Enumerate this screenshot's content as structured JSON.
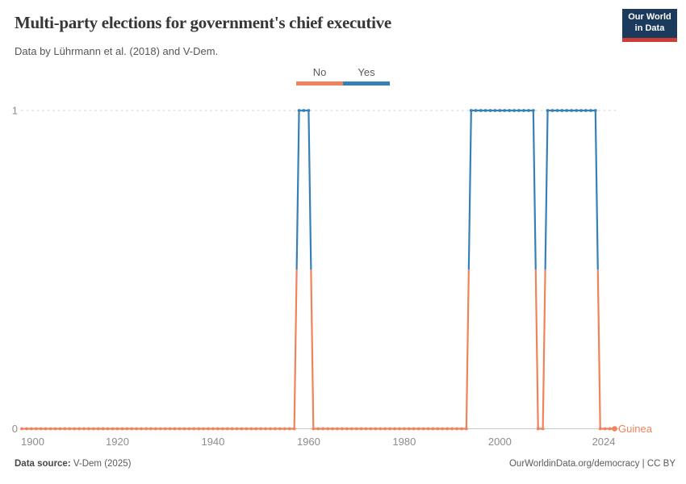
{
  "header": {
    "title": "Multi-party elections for government's chief executive",
    "subtitle": "Data by Lührmann et al. (2018) and V-Dem.",
    "logo": {
      "line1": "Our World",
      "line2": "in Data"
    }
  },
  "legend": {
    "items": [
      {
        "label": "No",
        "value": 0,
        "color": "#F0825C"
      },
      {
        "label": "Yes",
        "value": 1,
        "color": "#3581B7"
      }
    ]
  },
  "chart_data": {
    "type": "line",
    "subtype": "binary-step-with-yearly-markers",
    "title": "Multi-party elections for government's chief executive",
    "entity": "Guinea",
    "x_range": [
      1900,
      2024
    ],
    "y_range": [
      0,
      1
    ],
    "x_ticks": [
      "1900",
      "1920",
      "1940",
      "1960",
      "1980",
      "2000",
      "2024"
    ],
    "x_tick_years": [
      1900,
      1920,
      1940,
      1960,
      1980,
      2000,
      2024
    ],
    "y_ticks": [
      "0",
      "1"
    ],
    "y_tick_values": [
      0,
      1
    ],
    "grid": "dashed line at y=1, solid baseline at y=0",
    "legend_position": "top-center",
    "colors": {
      "value0": "#F0825C",
      "value1": "#3581B7"
    },
    "value_labels": {
      "0": "No",
      "1": "Yes"
    },
    "series": [
      {
        "name": "Guinea",
        "segments": [
          {
            "start": 1900,
            "end": 1957,
            "value": 0
          },
          {
            "start": 1958,
            "end": 1960,
            "value": 1
          },
          {
            "start": 1961,
            "end": 1993,
            "value": 0
          },
          {
            "start": 1994,
            "end": 2007,
            "value": 1
          },
          {
            "start": 2008,
            "end": 2009,
            "value": 0
          },
          {
            "start": 2010,
            "end": 2020,
            "value": 1
          },
          {
            "start": 2021,
            "end": 2024,
            "value": 0
          }
        ]
      }
    ],
    "end_label": "Guinea"
  },
  "footer": {
    "source_label": "Data source:",
    "source_value": " V-Dem (2025)",
    "right_text": "OurWorldinData.org/democracy | CC BY"
  }
}
